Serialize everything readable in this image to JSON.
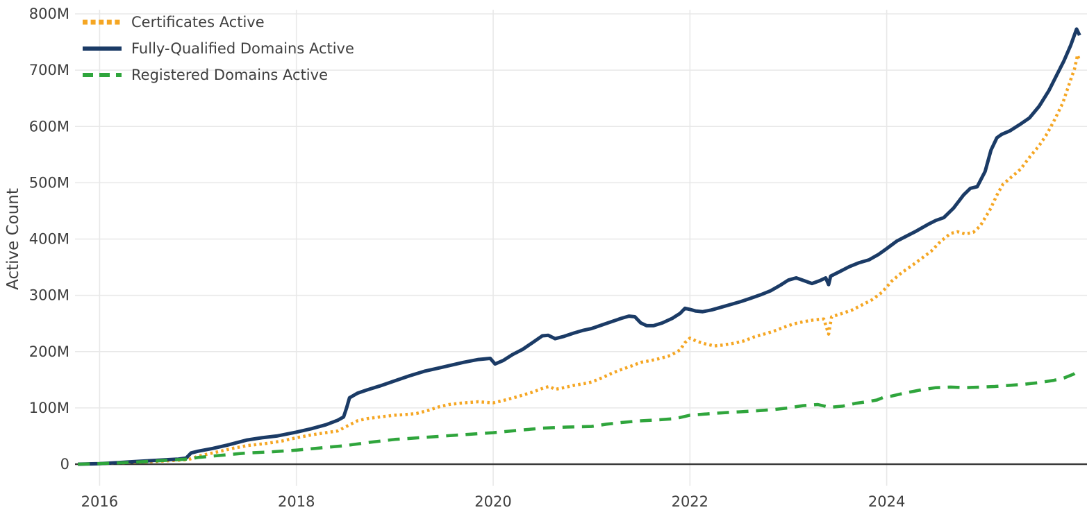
{
  "chart_data": {
    "type": "line",
    "title": "",
    "xlabel": "",
    "ylabel": "Active Count",
    "y_unit": "millions",
    "ylim": [
      0,
      800
    ],
    "xlim": [
      2015.75,
      2026.05
    ],
    "grid": true,
    "legend_position": "top-left",
    "y_tick_values": [
      0,
      100,
      200,
      300,
      400,
      500,
      600,
      700,
      800
    ],
    "y_tick_labels": [
      "0",
      "100M",
      "200M",
      "300M",
      "400M",
      "500M",
      "600M",
      "700M",
      "800M"
    ],
    "x_tick_values": [
      2016,
      2018,
      2020,
      2022,
      2024
    ],
    "x_tick_labels": [
      "2016",
      "2018",
      "2020",
      "2022",
      "2024"
    ],
    "colors": {
      "certificates": "#f5a623",
      "fqdn": "#1b3b66",
      "registered": "#2fa53c",
      "gridline": "#e8e8e8",
      "zero_line": "#3a3a3a",
      "tick_text": "#3f3f3f"
    },
    "series": [
      {
        "name": "Certificates Active",
        "key": "certificates",
        "color": "#f5a623",
        "style": "dotted",
        "points": [
          [
            2015.78,
            0
          ],
          [
            2016.0,
            1
          ],
          [
            2016.3,
            3
          ],
          [
            2016.6,
            5
          ],
          [
            2016.9,
            8
          ],
          [
            2017.0,
            14
          ],
          [
            2017.2,
            22
          ],
          [
            2017.35,
            28
          ],
          [
            2017.5,
            33
          ],
          [
            2017.7,
            37
          ],
          [
            2017.85,
            41
          ],
          [
            2018.0,
            47
          ],
          [
            2018.15,
            52
          ],
          [
            2018.3,
            56
          ],
          [
            2018.42,
            59
          ],
          [
            2018.52,
            68
          ],
          [
            2018.62,
            77
          ],
          [
            2018.72,
            81
          ],
          [
            2018.85,
            84
          ],
          [
            2019.0,
            87
          ],
          [
            2019.1,
            88
          ],
          [
            2019.22,
            90
          ],
          [
            2019.35,
            96
          ],
          [
            2019.45,
            102
          ],
          [
            2019.55,
            106
          ],
          [
            2019.7,
            109
          ],
          [
            2019.85,
            111
          ],
          [
            2020.0,
            109
          ],
          [
            2020.1,
            113
          ],
          [
            2020.25,
            120
          ],
          [
            2020.4,
            128
          ],
          [
            2020.52,
            136
          ],
          [
            2020.57,
            138
          ],
          [
            2020.63,
            133
          ],
          [
            2020.72,
            136
          ],
          [
            2020.82,
            140
          ],
          [
            2020.92,
            143
          ],
          [
            2021.0,
            146
          ],
          [
            2021.1,
            153
          ],
          [
            2021.2,
            161
          ],
          [
            2021.3,
            168
          ],
          [
            2021.4,
            174
          ],
          [
            2021.5,
            181
          ],
          [
            2021.6,
            184
          ],
          [
            2021.7,
            188
          ],
          [
            2021.8,
            193
          ],
          [
            2021.9,
            203
          ],
          [
            2021.95,
            216
          ],
          [
            2022.0,
            224
          ],
          [
            2022.06,
            219
          ],
          [
            2022.15,
            214
          ],
          [
            2022.25,
            210
          ],
          [
            2022.35,
            212
          ],
          [
            2022.45,
            215
          ],
          [
            2022.55,
            219
          ],
          [
            2022.65,
            226
          ],
          [
            2022.75,
            231
          ],
          [
            2022.85,
            236
          ],
          [
            2022.95,
            243
          ],
          [
            2023.05,
            249
          ],
          [
            2023.15,
            253
          ],
          [
            2023.25,
            256
          ],
          [
            2023.36,
            258
          ],
          [
            2023.41,
            231
          ],
          [
            2023.44,
            262
          ],
          [
            2023.55,
            268
          ],
          [
            2023.65,
            274
          ],
          [
            2023.75,
            283
          ],
          [
            2023.85,
            292
          ],
          [
            2023.95,
            305
          ],
          [
            2024.05,
            325
          ],
          [
            2024.15,
            340
          ],
          [
            2024.25,
            352
          ],
          [
            2024.35,
            365
          ],
          [
            2024.45,
            378
          ],
          [
            2024.55,
            396
          ],
          [
            2024.65,
            410
          ],
          [
            2024.72,
            413
          ],
          [
            2024.8,
            409
          ],
          [
            2024.88,
            412
          ],
          [
            2024.95,
            423
          ],
          [
            2025.05,
            452
          ],
          [
            2025.12,
            478
          ],
          [
            2025.18,
            497
          ],
          [
            2025.26,
            509
          ],
          [
            2025.36,
            524
          ],
          [
            2025.46,
            547
          ],
          [
            2025.55,
            566
          ],
          [
            2025.63,
            587
          ],
          [
            2025.71,
            613
          ],
          [
            2025.79,
            642
          ],
          [
            2025.86,
            678
          ],
          [
            2025.91,
            703
          ],
          [
            2025.94,
            727
          ],
          [
            2025.96,
            716
          ]
        ]
      },
      {
        "name": "Fully-Qualified Domains Active",
        "key": "fqdn",
        "color": "#1b3b66",
        "style": "solid",
        "points": [
          [
            2015.78,
            0
          ],
          [
            2016.0,
            1
          ],
          [
            2016.2,
            3
          ],
          [
            2016.4,
            5
          ],
          [
            2016.6,
            7
          ],
          [
            2016.8,
            9
          ],
          [
            2016.88,
            11
          ],
          [
            2016.93,
            20
          ],
          [
            2017.0,
            23
          ],
          [
            2017.15,
            28
          ],
          [
            2017.3,
            34
          ],
          [
            2017.5,
            43
          ],
          [
            2017.65,
            47
          ],
          [
            2017.8,
            50
          ],
          [
            2018.0,
            57
          ],
          [
            2018.15,
            63
          ],
          [
            2018.3,
            70
          ],
          [
            2018.42,
            78
          ],
          [
            2018.48,
            84
          ],
          [
            2018.51,
            100
          ],
          [
            2018.54,
            118
          ],
          [
            2018.62,
            126
          ],
          [
            2018.72,
            132
          ],
          [
            2018.85,
            139
          ],
          [
            2019.0,
            148
          ],
          [
            2019.15,
            157
          ],
          [
            2019.3,
            165
          ],
          [
            2019.5,
            173
          ],
          [
            2019.7,
            181
          ],
          [
            2019.85,
            186
          ],
          [
            2019.97,
            188
          ],
          [
            2020.02,
            178
          ],
          [
            2020.1,
            184
          ],
          [
            2020.2,
            195
          ],
          [
            2020.3,
            204
          ],
          [
            2020.4,
            216
          ],
          [
            2020.5,
            228
          ],
          [
            2020.56,
            229
          ],
          [
            2020.63,
            223
          ],
          [
            2020.72,
            227
          ],
          [
            2020.82,
            233
          ],
          [
            2020.92,
            238
          ],
          [
            2021.0,
            241
          ],
          [
            2021.1,
            247
          ],
          [
            2021.2,
            253
          ],
          [
            2021.3,
            259
          ],
          [
            2021.38,
            263
          ],
          [
            2021.44,
            262
          ],
          [
            2021.5,
            251
          ],
          [
            2021.56,
            246
          ],
          [
            2021.63,
            246
          ],
          [
            2021.72,
            251
          ],
          [
            2021.82,
            259
          ],
          [
            2021.9,
            268
          ],
          [
            2021.95,
            277
          ],
          [
            2022.0,
            275
          ],
          [
            2022.06,
            272
          ],
          [
            2022.13,
            271
          ],
          [
            2022.22,
            274
          ],
          [
            2022.32,
            279
          ],
          [
            2022.42,
            284
          ],
          [
            2022.52,
            289
          ],
          [
            2022.62,
            295
          ],
          [
            2022.72,
            301
          ],
          [
            2022.82,
            308
          ],
          [
            2022.92,
            318
          ],
          [
            2023.0,
            327
          ],
          [
            2023.08,
            331
          ],
          [
            2023.16,
            326
          ],
          [
            2023.24,
            321
          ],
          [
            2023.32,
            326
          ],
          [
            2023.38,
            331
          ],
          [
            2023.41,
            319
          ],
          [
            2023.43,
            334
          ],
          [
            2023.52,
            342
          ],
          [
            2023.62,
            351
          ],
          [
            2023.72,
            358
          ],
          [
            2023.82,
            363
          ],
          [
            2023.92,
            373
          ],
          [
            2024.0,
            383
          ],
          [
            2024.1,
            396
          ],
          [
            2024.2,
            405
          ],
          [
            2024.3,
            414
          ],
          [
            2024.42,
            426
          ],
          [
            2024.5,
            433
          ],
          [
            2024.58,
            438
          ],
          [
            2024.68,
            455
          ],
          [
            2024.78,
            478
          ],
          [
            2024.85,
            490
          ],
          [
            2024.92,
            493
          ],
          [
            2025.0,
            520
          ],
          [
            2025.06,
            558
          ],
          [
            2025.12,
            580
          ],
          [
            2025.17,
            586
          ],
          [
            2025.25,
            592
          ],
          [
            2025.35,
            603
          ],
          [
            2025.45,
            615
          ],
          [
            2025.55,
            636
          ],
          [
            2025.65,
            664
          ],
          [
            2025.73,
            692
          ],
          [
            2025.8,
            716
          ],
          [
            2025.87,
            744
          ],
          [
            2025.93,
            773
          ],
          [
            2025.96,
            762
          ]
        ]
      },
      {
        "name": "Registered Domains Active",
        "key": "registered",
        "color": "#2fa53c",
        "style": "dashed",
        "points": [
          [
            2015.78,
            0
          ],
          [
            2016.0,
            1
          ],
          [
            2016.3,
            3
          ],
          [
            2016.6,
            6
          ],
          [
            2016.9,
            9
          ],
          [
            2017.0,
            12
          ],
          [
            2017.25,
            16
          ],
          [
            2017.5,
            20
          ],
          [
            2017.75,
            22
          ],
          [
            2018.0,
            25
          ],
          [
            2018.25,
            29
          ],
          [
            2018.5,
            33
          ],
          [
            2018.75,
            39
          ],
          [
            2019.0,
            44
          ],
          [
            2019.25,
            47
          ],
          [
            2019.5,
            50
          ],
          [
            2019.75,
            53
          ],
          [
            2020.0,
            56
          ],
          [
            2020.25,
            60
          ],
          [
            2020.5,
            64
          ],
          [
            2020.75,
            66
          ],
          [
            2021.0,
            67
          ],
          [
            2021.15,
            71
          ],
          [
            2021.3,
            74
          ],
          [
            2021.5,
            77
          ],
          [
            2021.7,
            79
          ],
          [
            2021.85,
            81
          ],
          [
            2022.0,
            87
          ],
          [
            2022.15,
            89
          ],
          [
            2022.3,
            91
          ],
          [
            2022.5,
            93
          ],
          [
            2022.7,
            95
          ],
          [
            2022.85,
            97
          ],
          [
            2023.0,
            100
          ],
          [
            2023.15,
            104
          ],
          [
            2023.3,
            106
          ],
          [
            2023.42,
            101
          ],
          [
            2023.55,
            103
          ],
          [
            2023.68,
            108
          ],
          [
            2023.8,
            111
          ],
          [
            2023.9,
            114
          ],
          [
            2023.97,
            119
          ],
          [
            2024.05,
            121
          ],
          [
            2024.2,
            127
          ],
          [
            2024.35,
            132
          ],
          [
            2024.5,
            136
          ],
          [
            2024.65,
            137
          ],
          [
            2024.8,
            136
          ],
          [
            2024.95,
            137
          ],
          [
            2025.1,
            138
          ],
          [
            2025.25,
            140
          ],
          [
            2025.4,
            142
          ],
          [
            2025.55,
            145
          ],
          [
            2025.7,
            149
          ],
          [
            2025.8,
            153
          ],
          [
            2025.9,
            160
          ],
          [
            2025.96,
            168
          ]
        ]
      }
    ]
  }
}
